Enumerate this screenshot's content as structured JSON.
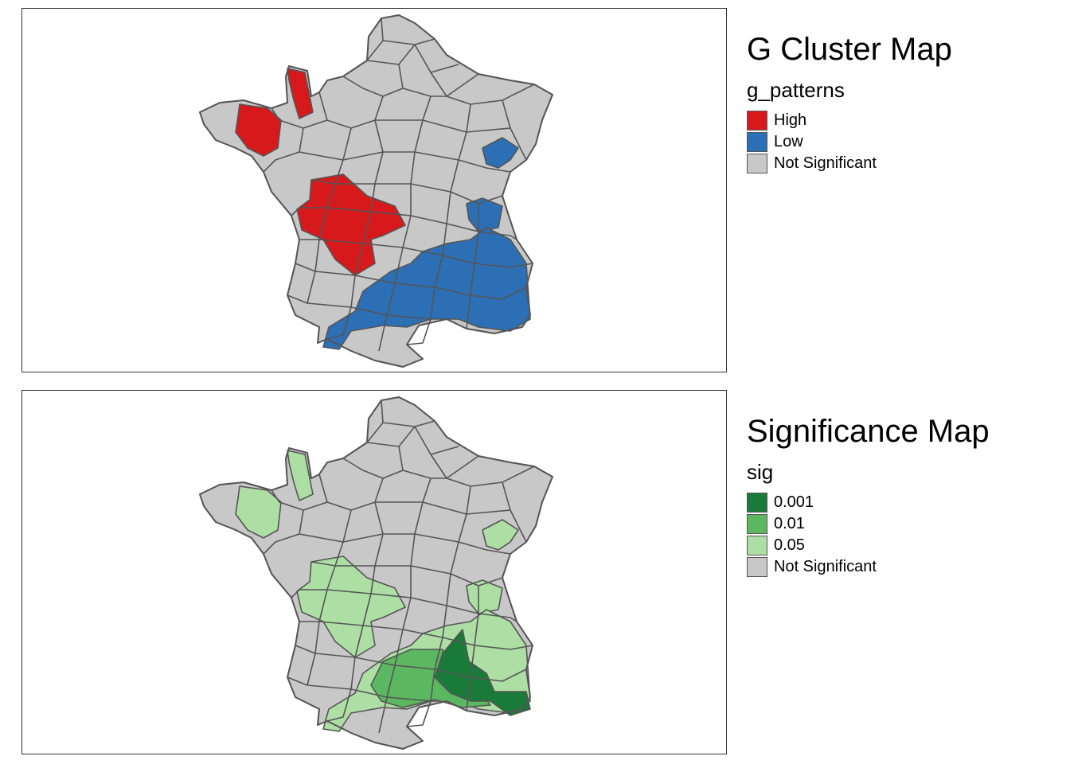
{
  "maps": [
    {
      "title": "G Cluster Map",
      "variable": "g_patterns",
      "legend": [
        {
          "label": "High",
          "color": "#d7191c"
        },
        {
          "label": "Low",
          "color": "#2c6fb5"
        },
        {
          "label": "Not Significant",
          "color": "#c8c8c8"
        }
      ]
    },
    {
      "title": "Significance Map",
      "variable": "sig",
      "legend": [
        {
          "label": "0.001",
          "color": "#1a7a3a"
        },
        {
          "label": "0.01",
          "color": "#5cb860"
        },
        {
          "label": "0.05",
          "color": "#addfa5"
        },
        {
          "label": "Not Significant",
          "color": "#c8c8c8"
        }
      ]
    }
  ]
}
